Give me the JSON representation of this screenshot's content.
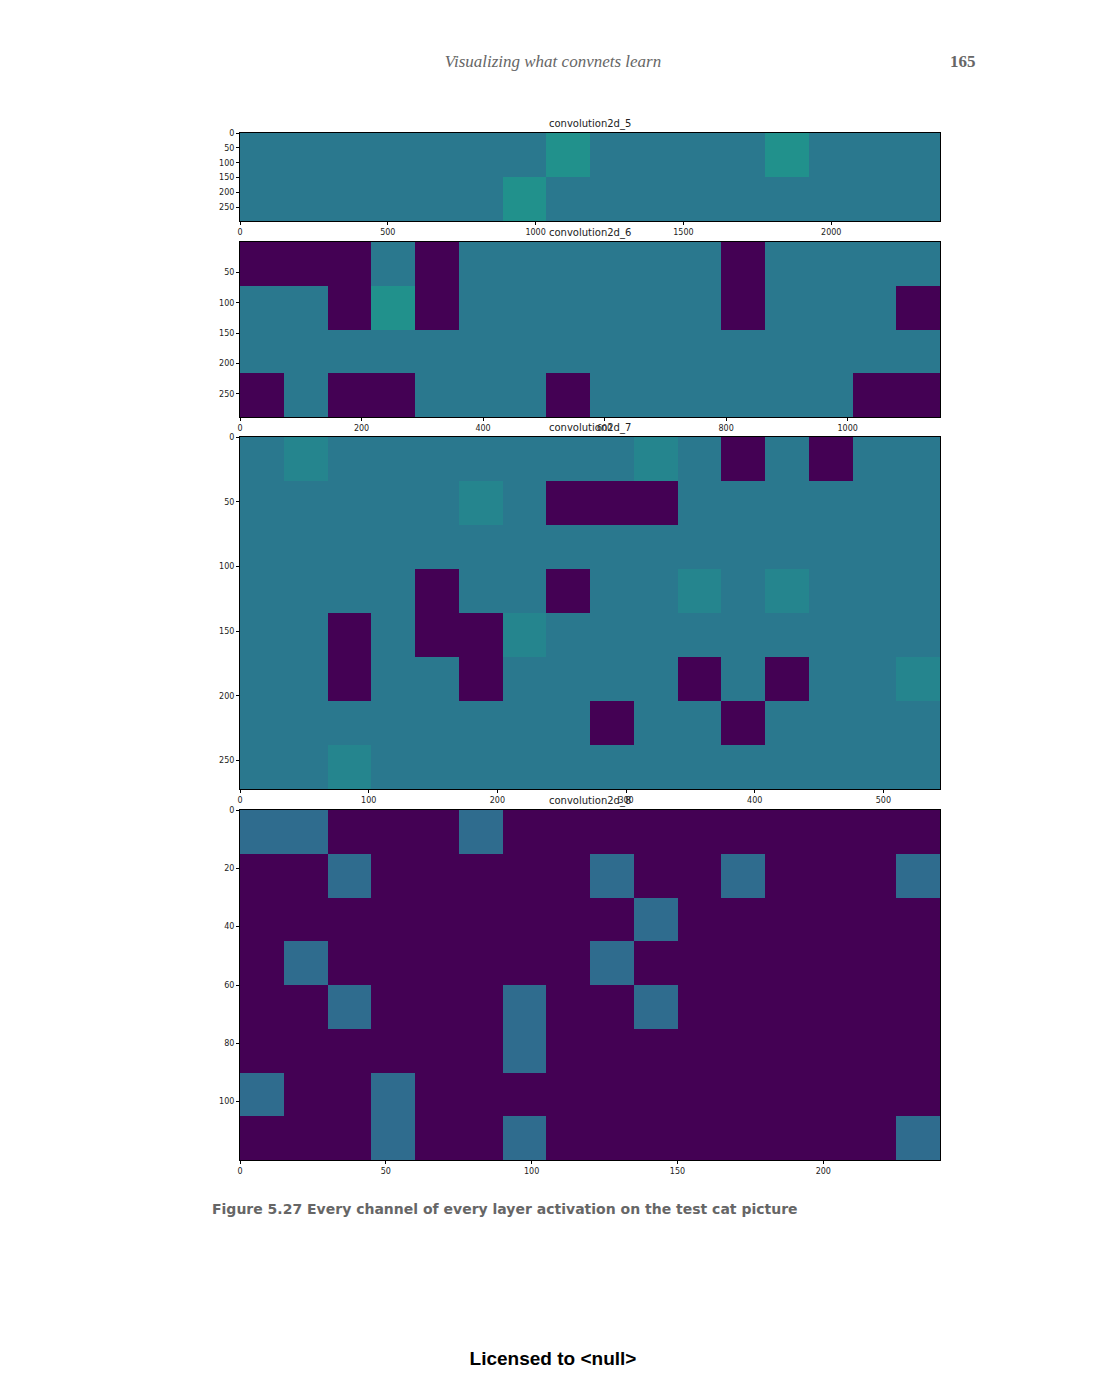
{
  "header": "Visualizing what convnets learn",
  "page_number": 165,
  "caption": "Figure 5.27   Every channel of every layer activation on the test cat picture",
  "footer": "Licensed to   <null>",
  "chart_data": [
    {
      "type": "heatmap",
      "title": "convolution2d_5",
      "color": "viridis",
      "zlim": [
        0,
        1
      ],
      "xlim": [
        0,
        2368
      ],
      "ylim": [
        296,
        0
      ],
      "xticks": [
        0,
        500,
        1000,
        1500,
        2000
      ],
      "yticks": [
        0,
        50,
        100,
        150,
        200,
        250
      ],
      "cells": [
        [
          0.4,
          0.4,
          0.4,
          0.4,
          0.4,
          0.4,
          0.4,
          0.5,
          0.4,
          0.4,
          0.4,
          0.4,
          0.5,
          0.4,
          0.4,
          0.4
        ],
        [
          0.4,
          0.4,
          0.4,
          0.4,
          0.4,
          0.4,
          0.5,
          0.4,
          0.4,
          0.4,
          0.4,
          0.4,
          0.4,
          0.4,
          0.4,
          0.4
        ]
      ]
    },
    {
      "type": "heatmap",
      "title": "convolution2d_6",
      "color": "viridis",
      "zlim": [
        0,
        1
      ],
      "xlim": [
        0,
        1152
      ],
      "ylim": [
        288,
        0
      ],
      "xticks": [
        0,
        200,
        400,
        600,
        800,
        1000
      ],
      "yticks": [
        50,
        100,
        150,
        200,
        250
      ],
      "cells": [
        [
          0,
          0,
          0,
          0.4,
          0,
          0.4,
          0.4,
          0.4,
          0.4,
          0.4,
          0.4,
          0,
          0.4,
          0.4,
          0.4,
          0.4
        ],
        [
          0.4,
          0.4,
          0,
          0.5,
          0,
          0.4,
          0.4,
          0.4,
          0.4,
          0.4,
          0.4,
          0,
          0.4,
          0.4,
          0.4,
          0
        ],
        [
          0.4,
          0.4,
          0.4,
          0.4,
          0.4,
          0.4,
          0.4,
          0.4,
          0.4,
          0.4,
          0.4,
          0.4,
          0.4,
          0.4,
          0.4,
          0.4
        ],
        [
          0,
          0.4,
          0,
          0,
          0.4,
          0.4,
          0.4,
          0,
          0.4,
          0.4,
          0.4,
          0.4,
          0.4,
          0.4,
          0,
          0
        ]
      ]
    },
    {
      "type": "heatmap",
      "title": "convolution2d_7",
      "color": "viridis",
      "zlim": [
        0,
        1
      ],
      "xlim": [
        0,
        544
      ],
      "ylim": [
        272,
        0
      ],
      "xticks": [
        0,
        100,
        200,
        300,
        400,
        500
      ],
      "yticks": [
        0,
        50,
        100,
        150,
        200,
        250
      ],
      "cells": [
        [
          0.4,
          0.45,
          0.4,
          0.4,
          0.4,
          0.4,
          0.4,
          0.4,
          0.4,
          0.45,
          0.4,
          0,
          0.4,
          0,
          0.4,
          0.4
        ],
        [
          0.4,
          0.4,
          0.4,
          0.4,
          0.4,
          0.45,
          0.4,
          0,
          0,
          0,
          0.4,
          0.4,
          0.4,
          0.4,
          0.4,
          0.4
        ],
        [
          0.4,
          0.4,
          0.4,
          0.4,
          0.4,
          0.4,
          0.4,
          0.4,
          0.4,
          0.4,
          0.4,
          0.4,
          0.4,
          0.4,
          0.4,
          0.4
        ],
        [
          0.4,
          0.4,
          0.4,
          0.4,
          0,
          0.4,
          0.4,
          0,
          0.4,
          0.4,
          0.45,
          0.4,
          0.45,
          0.4,
          0.4,
          0.4
        ],
        [
          0.4,
          0.4,
          0,
          0.4,
          0,
          0,
          0.45,
          0.4,
          0.4,
          0.4,
          0.4,
          0.4,
          0.4,
          0.4,
          0.4,
          0.4
        ],
        [
          0.4,
          0.4,
          0,
          0.4,
          0.4,
          0,
          0.4,
          0.4,
          0.4,
          0.4,
          0,
          0.4,
          0,
          0.4,
          0.4,
          0.45
        ],
        [
          0.4,
          0.4,
          0.4,
          0.4,
          0.4,
          0.4,
          0.4,
          0.4,
          0,
          0.4,
          0.4,
          0,
          0.4,
          0.4,
          0.4,
          0.4
        ],
        [
          0.4,
          0.4,
          0.45,
          0.4,
          0.4,
          0.4,
          0.4,
          0.4,
          0.4,
          0.4,
          0.4,
          0.4,
          0.4,
          0.4,
          0.4,
          0.4
        ]
      ]
    },
    {
      "type": "heatmap",
      "title": "convolution2d_8",
      "color": "viridis",
      "zlim": [
        0,
        1
      ],
      "xlim": [
        0,
        240
      ],
      "ylim": [
        120,
        0
      ],
      "xticks": [
        0,
        50,
        100,
        150,
        200
      ],
      "yticks": [
        0,
        20,
        40,
        60,
        80,
        100
      ],
      "cells": [
        [
          0.35,
          0.35,
          0,
          0,
          0,
          0.35,
          0,
          0,
          0,
          0,
          0,
          0,
          0,
          0,
          0,
          0
        ],
        [
          0,
          0,
          0.35,
          0,
          0,
          0,
          0,
          0,
          0.35,
          0,
          0,
          0.35,
          0,
          0,
          0,
          0.35
        ],
        [
          0,
          0,
          0,
          0,
          0,
          0,
          0,
          0,
          0,
          0.35,
          0,
          0,
          0,
          0,
          0,
          0
        ],
        [
          0,
          0.35,
          0,
          0,
          0,
          0,
          0,
          0,
          0.35,
          0,
          0,
          0,
          0,
          0,
          0,
          0
        ],
        [
          0,
          0,
          0.35,
          0,
          0,
          0,
          0.35,
          0,
          0,
          0.35,
          0,
          0,
          0,
          0,
          0,
          0
        ],
        [
          0,
          0,
          0,
          0,
          0,
          0,
          0.35,
          0,
          0,
          0,
          0,
          0,
          0,
          0,
          0,
          0
        ],
        [
          0.35,
          0,
          0,
          0.35,
          0,
          0,
          0,
          0,
          0,
          0,
          0,
          0,
          0,
          0,
          0,
          0
        ],
        [
          0,
          0,
          0,
          0.35,
          0,
          0,
          0.35,
          0,
          0,
          0,
          0,
          0,
          0,
          0,
          0,
          0.35
        ]
      ]
    }
  ]
}
